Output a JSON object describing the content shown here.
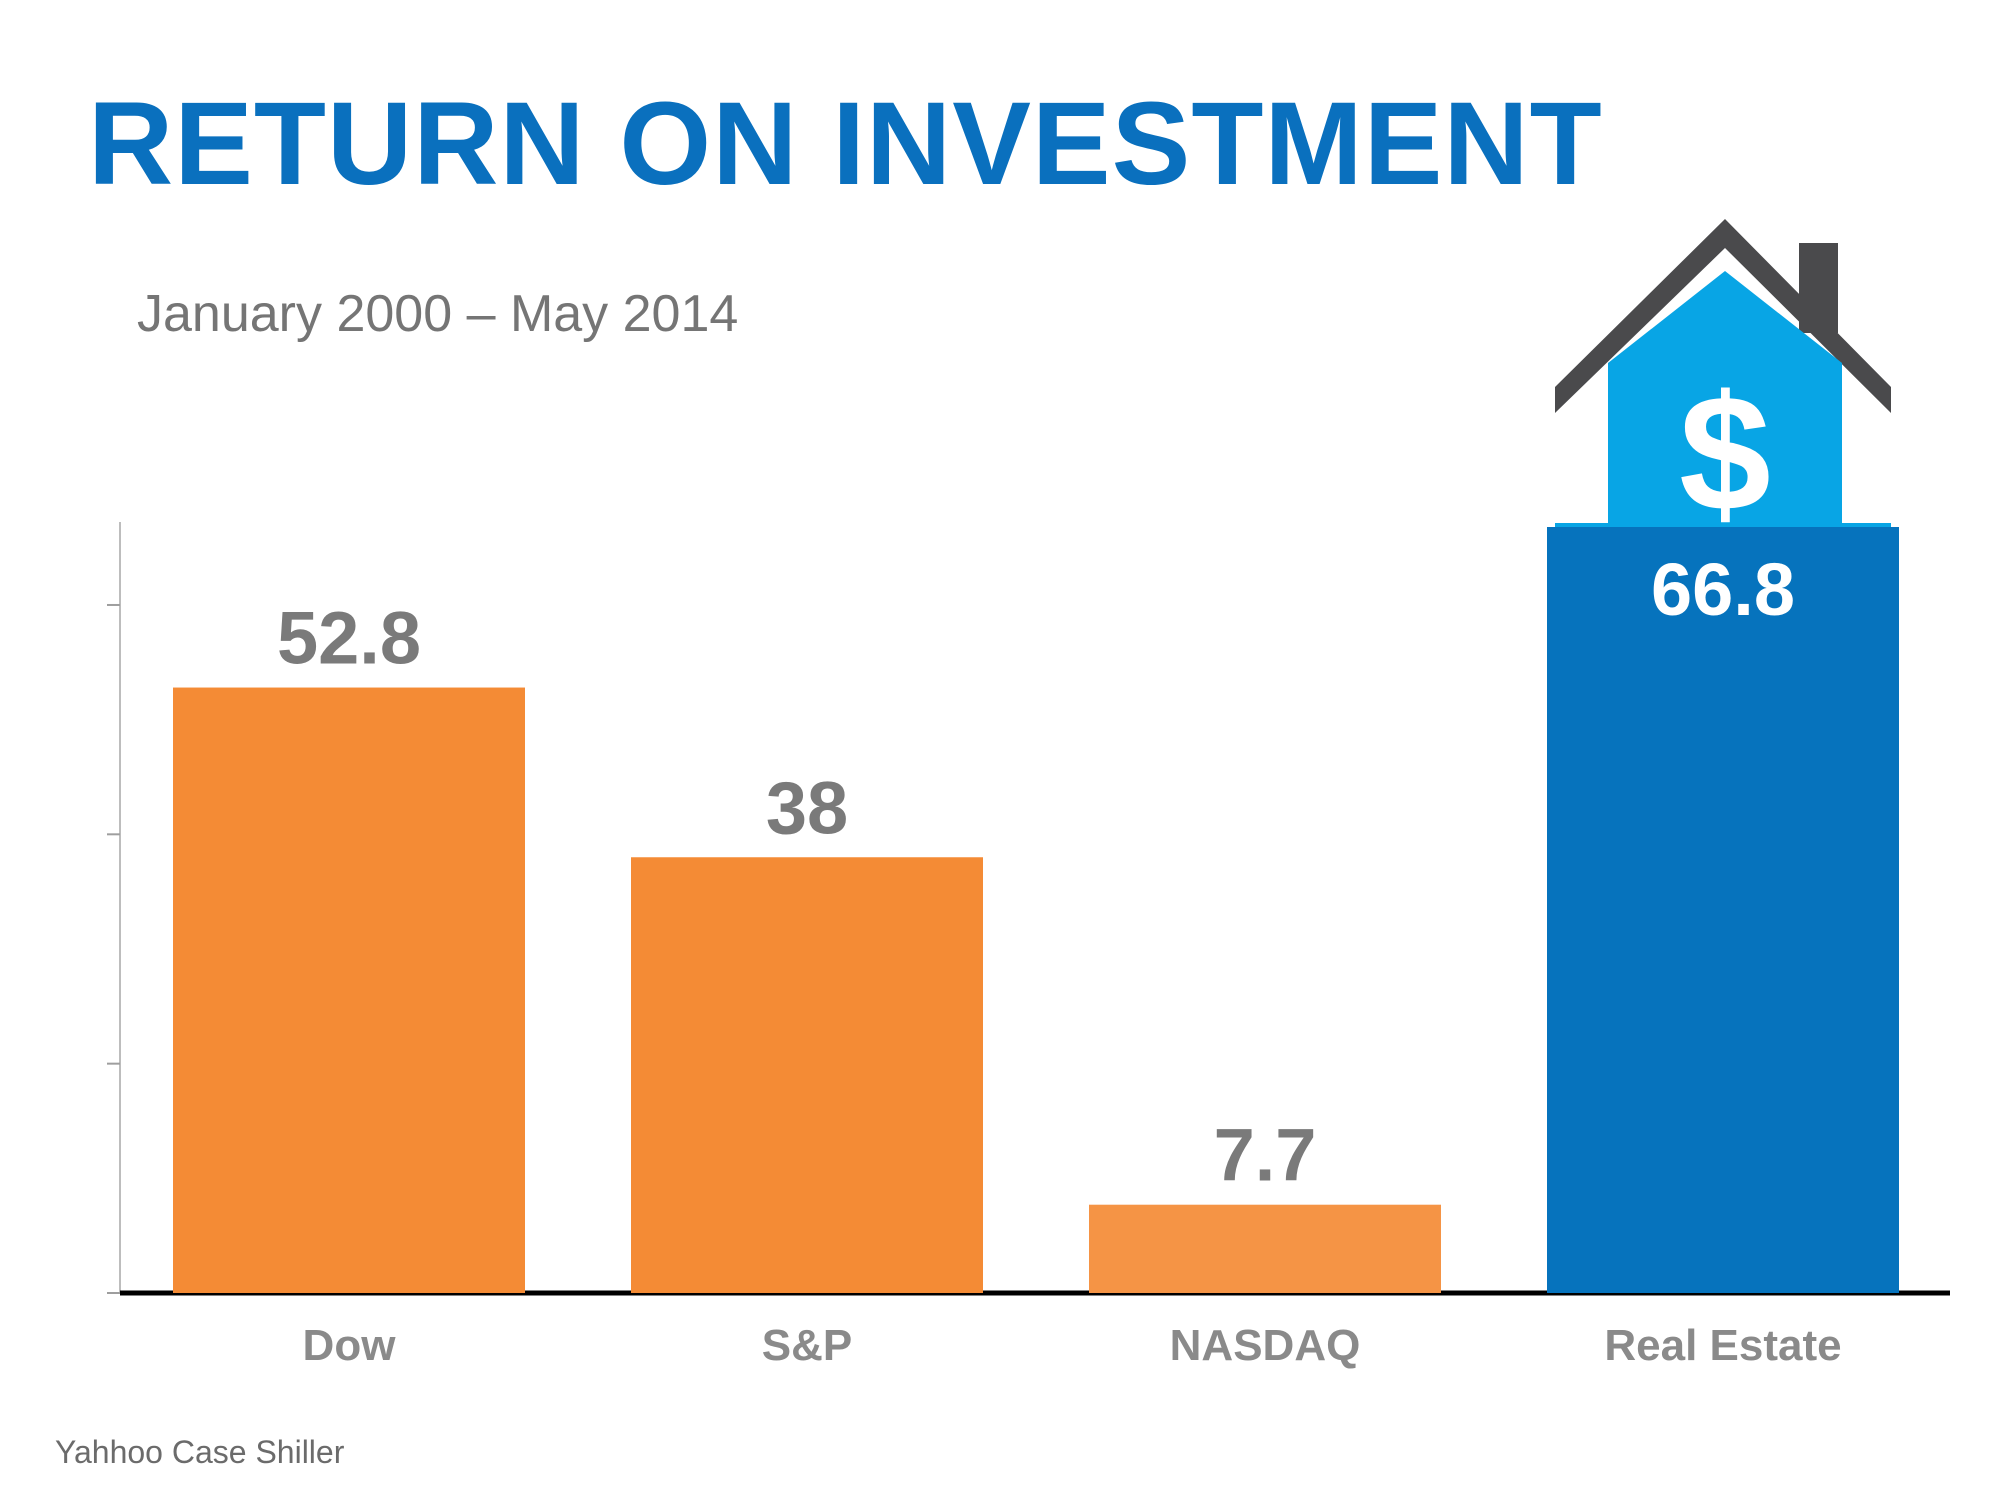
{
  "header": {
    "title": "RETURN ON INVESTMENT",
    "subtitle": "January 2000 – May 2014"
  },
  "footer": {
    "source": "Yahhoo Case Shiller"
  },
  "colors": {
    "title": "#0a70be",
    "orange": "#f48b35",
    "orange_light": "#f59445",
    "blue": "#0673bd",
    "value_label": "#7a7a7a",
    "value_label_highlight": "#ffffff",
    "category_label": "#8a8a8a",
    "axis": "#000000",
    "house_roof": "#4a4a4c",
    "house_body": "#08a5e5"
  },
  "chart_data": {
    "type": "bar",
    "categories": [
      "Dow",
      "S&P",
      "NASDAQ",
      "Real Estate"
    ],
    "values": [
      52.8,
      38,
      7.7,
      66.8
    ],
    "value_labels": [
      "52.8",
      "38",
      "7.7",
      "66.8"
    ],
    "highlight": "Real Estate",
    "ylim": [
      0,
      70
    ],
    "y_tick_values": [
      0,
      20,
      40,
      60
    ],
    "show_y_tick_labels": false,
    "grid": false,
    "legend": "none",
    "xlabel": "",
    "ylabel": ""
  },
  "icons": {
    "highlight_icon": "house-dollar-icon",
    "dollar_glyph": "$"
  }
}
